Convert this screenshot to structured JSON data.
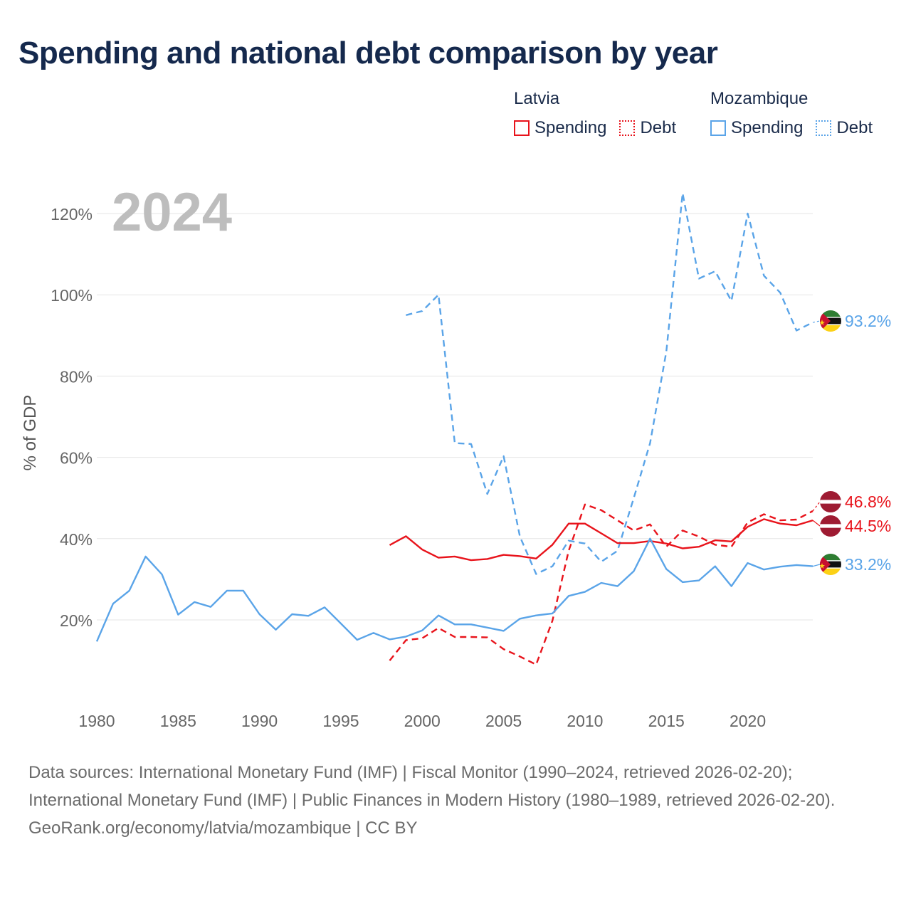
{
  "title": "Spending and national debt comparison by year",
  "legend": {
    "groups": [
      {
        "country": "Latvia",
        "items": [
          {
            "label": "Spending",
            "color": "#e8131b",
            "style": "solid"
          },
          {
            "label": "Debt",
            "color": "#e8131b",
            "style": "dashed"
          }
        ]
      },
      {
        "country": "Mozambique",
        "items": [
          {
            "label": "Spending",
            "color": "#5aa4e8",
            "style": "solid"
          },
          {
            "label": "Debt",
            "color": "#5aa4e8",
            "style": "dashed"
          }
        ]
      }
    ]
  },
  "chart_data": {
    "type": "line",
    "year_label": "2024",
    "ylabel": "% of GDP",
    "xlabel": "",
    "xlim": [
      1980,
      2024
    ],
    "ylim": [
      0,
      125
    ],
    "x_ticks": [
      1980,
      1985,
      1990,
      1995,
      2000,
      2005,
      2010,
      2015,
      2020
    ],
    "y_ticks": [
      20,
      40,
      60,
      80,
      100,
      120
    ],
    "y_tick_labels": [
      "20%",
      "40%",
      "60%",
      "80%",
      "100%",
      "120%"
    ],
    "gridlines": true,
    "series": [
      {
        "name": "Mozambique Debt",
        "country": "Mozambique",
        "metric": "Debt",
        "color": "#5aa4e8",
        "dashed": true,
        "end_label": "93.2%",
        "flag": "mozambique",
        "points": [
          [
            1999,
            95.0
          ],
          [
            2000,
            96.0
          ],
          [
            2001,
            100.0
          ],
          [
            2002,
            63.5
          ],
          [
            2003,
            63.3
          ],
          [
            2004,
            51.0
          ],
          [
            2005,
            60.3
          ],
          [
            2006,
            40.5
          ],
          [
            2007,
            31.3
          ],
          [
            2008,
            33.2
          ],
          [
            2009,
            39.5
          ],
          [
            2010,
            38.8
          ],
          [
            2011,
            34.3
          ],
          [
            2012,
            37.0
          ],
          [
            2013,
            50.0
          ],
          [
            2014,
            63.5
          ],
          [
            2015,
            86.0
          ],
          [
            2016,
            125.0
          ],
          [
            2017,
            104.0
          ],
          [
            2018,
            105.8
          ],
          [
            2019,
            98.5
          ],
          [
            2020,
            120.0
          ],
          [
            2021,
            104.7
          ],
          [
            2022,
            100.5
          ],
          [
            2023,
            91.2
          ],
          [
            2024,
            93.2
          ]
        ]
      },
      {
        "name": "Latvia Debt",
        "country": "Latvia",
        "metric": "Debt",
        "color": "#e8131b",
        "dashed": true,
        "end_label": "46.8%",
        "flag": "latvia",
        "points": [
          [
            1998,
            10.0
          ],
          [
            1999,
            15.0
          ],
          [
            2000,
            15.5
          ],
          [
            2001,
            18.0
          ],
          [
            2002,
            15.8
          ],
          [
            2003,
            15.8
          ],
          [
            2004,
            15.7
          ],
          [
            2005,
            12.8
          ],
          [
            2006,
            11.0
          ],
          [
            2007,
            9.0
          ],
          [
            2008,
            19.8
          ],
          [
            2009,
            37.0
          ],
          [
            2010,
            48.4
          ],
          [
            2011,
            47.0
          ],
          [
            2012,
            44.5
          ],
          [
            2013,
            42.0
          ],
          [
            2014,
            43.5
          ],
          [
            2015,
            38.0
          ],
          [
            2016,
            42.0
          ],
          [
            2017,
            40.5
          ],
          [
            2018,
            38.5
          ],
          [
            2019,
            38.0
          ],
          [
            2020,
            44.0
          ],
          [
            2021,
            46.0
          ],
          [
            2022,
            44.5
          ],
          [
            2023,
            44.7
          ],
          [
            2024,
            46.8
          ]
        ]
      },
      {
        "name": "Latvia Spending",
        "country": "Latvia",
        "metric": "Spending",
        "color": "#e8131b",
        "dashed": false,
        "end_label": "44.5%",
        "flag": "latvia",
        "points": [
          [
            1998,
            38.4
          ],
          [
            1999,
            40.6
          ],
          [
            2000,
            37.3
          ],
          [
            2001,
            35.3
          ],
          [
            2002,
            35.6
          ],
          [
            2003,
            34.7
          ],
          [
            2004,
            35.0
          ],
          [
            2005,
            36.0
          ],
          [
            2006,
            35.7
          ],
          [
            2007,
            35.1
          ],
          [
            2008,
            38.5
          ],
          [
            2009,
            43.7
          ],
          [
            2010,
            43.7
          ],
          [
            2011,
            41.3
          ],
          [
            2012,
            38.9
          ],
          [
            2013,
            38.9
          ],
          [
            2014,
            39.4
          ],
          [
            2015,
            38.8
          ],
          [
            2016,
            37.6
          ],
          [
            2017,
            38.0
          ],
          [
            2018,
            39.6
          ],
          [
            2019,
            39.3
          ],
          [
            2020,
            42.9
          ],
          [
            2021,
            44.8
          ],
          [
            2022,
            43.7
          ],
          [
            2023,
            43.3
          ],
          [
            2024,
            44.5
          ]
        ]
      },
      {
        "name": "Mozambique Spending",
        "country": "Mozambique",
        "metric": "Spending",
        "color": "#5aa4e8",
        "dashed": false,
        "end_label": "33.2%",
        "flag": "mozambique",
        "points": [
          [
            1980,
            14.7
          ],
          [
            1981,
            24.0
          ],
          [
            1982,
            27.2
          ],
          [
            1983,
            35.6
          ],
          [
            1984,
            31.2
          ],
          [
            1985,
            21.3
          ],
          [
            1986,
            24.4
          ],
          [
            1987,
            23.2
          ],
          [
            1988,
            27.2
          ],
          [
            1989,
            27.2
          ],
          [
            1990,
            21.4
          ],
          [
            1991,
            17.6
          ],
          [
            1992,
            21.4
          ],
          [
            1993,
            21.0
          ],
          [
            1994,
            23.1
          ],
          [
            1995,
            19.1
          ],
          [
            1996,
            15.1
          ],
          [
            1997,
            16.8
          ],
          [
            1998,
            15.2
          ],
          [
            1999,
            15.9
          ],
          [
            2000,
            17.4
          ],
          [
            2001,
            21.1
          ],
          [
            2002,
            18.9
          ],
          [
            2003,
            18.9
          ],
          [
            2004,
            18.1
          ],
          [
            2005,
            17.3
          ],
          [
            2006,
            20.3
          ],
          [
            2007,
            21.1
          ],
          [
            2008,
            21.6
          ],
          [
            2009,
            25.9
          ],
          [
            2010,
            26.9
          ],
          [
            2011,
            29.1
          ],
          [
            2012,
            28.3
          ],
          [
            2013,
            32.0
          ],
          [
            2014,
            40.0
          ],
          [
            2015,
            32.5
          ],
          [
            2016,
            29.3
          ],
          [
            2017,
            29.7
          ],
          [
            2018,
            33.2
          ],
          [
            2019,
            28.3
          ],
          [
            2020,
            34.0
          ],
          [
            2021,
            32.4
          ],
          [
            2022,
            33.1
          ],
          [
            2023,
            33.5
          ],
          [
            2024,
            33.2
          ]
        ]
      }
    ]
  },
  "footer": {
    "sources": "Data sources: International Monetary Fund (IMF) | Fiscal Monitor (1990–2024, retrieved 2026-02-20); International Monetary Fund (IMF) | Public Finances in Modern History (1980–1989, retrieved 2026-02-20).",
    "credit": "GeoRank.org/economy/latvia/mozambique | CC BY"
  }
}
